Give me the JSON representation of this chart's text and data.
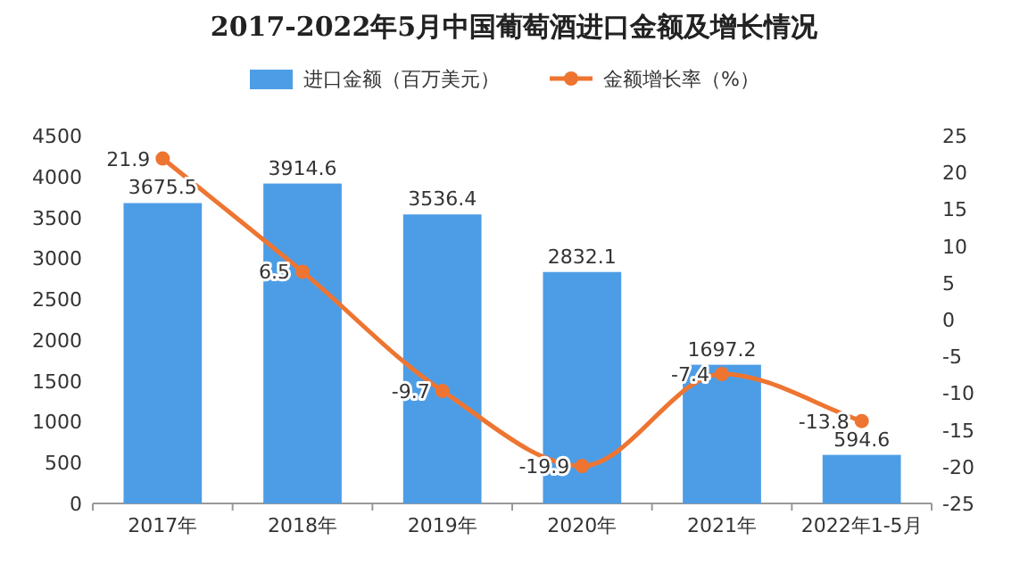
{
  "chart_data": {
    "type": "bar",
    "title": "2017-2022年5月中国葡萄酒进口金额及增长情况",
    "categories": [
      "2017年",
      "2018年",
      "2019年",
      "2020年",
      "2021年",
      "2022年1-5月"
    ],
    "series": [
      {
        "name": "进口金额（百万美元）",
        "type": "bar",
        "color": "#4d9de6",
        "values": [
          3675.5,
          3914.6,
          3536.4,
          2832.1,
          1697.2,
          594.6
        ]
      },
      {
        "name": "金额增长率（%）",
        "type": "line",
        "axis": "y2",
        "color": "#ee7531",
        "marker": "circle",
        "values": [
          21.9,
          6.5,
          -9.7,
          -19.9,
          -7.4,
          -13.8
        ]
      }
    ],
    "ylim": [
      0,
      4500
    ],
    "yticks": [
      0,
      500,
      1000,
      1500,
      2000,
      2500,
      3000,
      3500,
      4000,
      4500
    ],
    "y2lim": [
      -25,
      25
    ],
    "y2ticks": [
      -25,
      -20,
      -15,
      -10,
      -5,
      0,
      5,
      10,
      15,
      20,
      25
    ],
    "legend": "top",
    "data_labels": true,
    "grid": false
  }
}
